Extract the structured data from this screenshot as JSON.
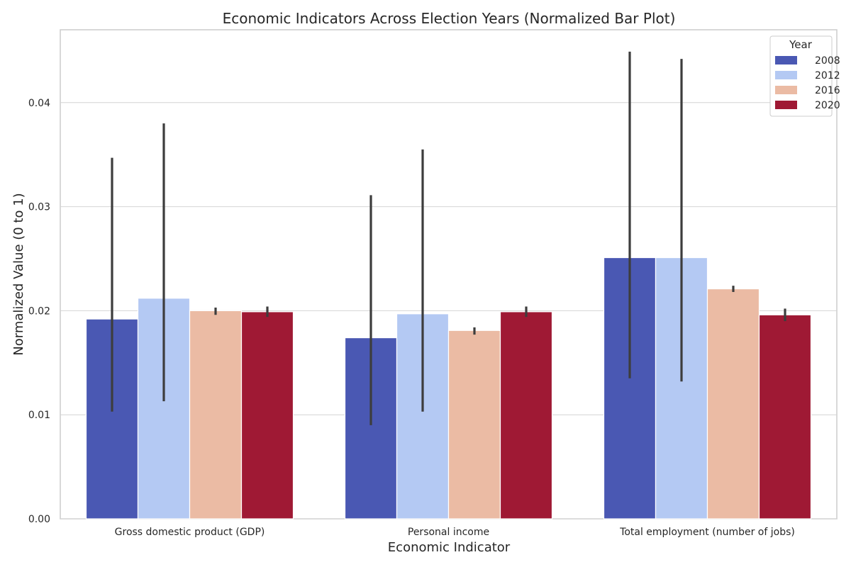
{
  "chart_data": {
    "type": "bar",
    "title": "Economic Indicators Across Election Years (Normalized Bar Plot)",
    "xlabel": "Economic Indicator",
    "ylabel": "Normalized Value (0 to 1)",
    "categories": [
      "Gross domestic product (GDP)",
      "Personal income",
      "Total employment (number of jobs)"
    ],
    "ylim": [
      0,
      0.047
    ],
    "yticks": [
      0.0,
      0.01,
      0.02,
      0.03,
      0.04
    ],
    "ytick_labels": [
      "0.00",
      "0.01",
      "0.02",
      "0.03",
      "0.04"
    ],
    "grid": true,
    "legend": {
      "title": "Year",
      "placement": "top-right"
    },
    "series": [
      {
        "name": "2008",
        "color": "#4a58b3",
        "values": [
          0.0192,
          0.0174,
          0.0251
        ],
        "ci_low": [
          0.0103,
          0.009,
          0.0135
        ],
        "ci_high": [
          0.0347,
          0.0311,
          0.0449
        ]
      },
      {
        "name": "2012",
        "color": "#b4c9f3",
        "values": [
          0.0212,
          0.0197,
          0.0251
        ],
        "ci_low": [
          0.0113,
          0.0103,
          0.0132
        ],
        "ci_high": [
          0.038,
          0.0355,
          0.0442
        ]
      },
      {
        "name": "2016",
        "color": "#ebbba4",
        "values": [
          0.02,
          0.0181,
          0.0221
        ],
        "ci_low": [
          0.0196,
          0.0177,
          0.0218
        ],
        "ci_high": [
          0.0203,
          0.0184,
          0.0224
        ]
      },
      {
        "name": "2020",
        "color": "#9f1934",
        "values": [
          0.0199,
          0.0199,
          0.0196
        ],
        "ci_low": [
          0.0194,
          0.0194,
          0.019
        ],
        "ci_high": [
          0.0204,
          0.0204,
          0.0202
        ]
      }
    ]
  }
}
